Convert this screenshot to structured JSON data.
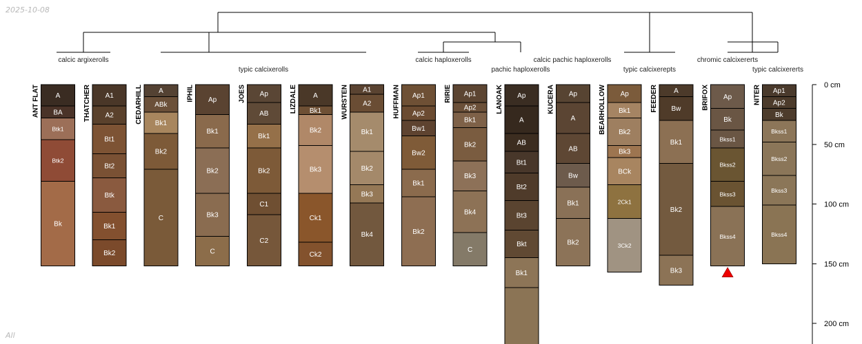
{
  "date_label": "2025-10-08",
  "footer_label": "All",
  "depth_axis": {
    "unit": "cm",
    "max": 220,
    "ticks": [
      {
        "depth": 0,
        "label": "0 cm"
      },
      {
        "depth": 50,
        "label": "50 cm"
      },
      {
        "depth": 100,
        "label": "100 cm"
      },
      {
        "depth": 150,
        "label": "150 cm"
      },
      {
        "depth": 200,
        "label": "200 cm"
      }
    ]
  },
  "groups": [
    {
      "label": "calcic argixerolls"
    },
    {
      "label": "typic calcixerolls"
    },
    {
      "label": "calcic haploxerolls"
    },
    {
      "label": "pachic haploxerolls"
    },
    {
      "label": "calcic pachic haploxerolls"
    },
    {
      "label": "typic calcixerepts"
    },
    {
      "label": "chromic calcixererts"
    },
    {
      "label": "typic calcixererts"
    }
  ],
  "marker": {
    "profile": "BRIFOX",
    "color": "#ee0000"
  },
  "profiles": [
    {
      "name": "ANT FLAT",
      "horizons": [
        {
          "name": "A",
          "top": 0,
          "bottom": 18,
          "color": "#3a2c22"
        },
        {
          "name": "BA",
          "top": 18,
          "bottom": 28,
          "color": "#4a3328"
        },
        {
          "name": "Btk1",
          "top": 28,
          "bottom": 46,
          "color": "#9c6f58"
        },
        {
          "name": "Btk2",
          "top": 46,
          "bottom": 81,
          "color": "#8f4b36"
        },
        {
          "name": "Bk",
          "top": 81,
          "bottom": 152,
          "color": "#a36b48"
        }
      ]
    },
    {
      "name": "THATCHER",
      "horizons": [
        {
          "name": "A1",
          "top": 0,
          "bottom": 18,
          "color": "#4a3728"
        },
        {
          "name": "A2",
          "top": 18,
          "bottom": 33,
          "color": "#5a412c"
        },
        {
          "name": "Bt1",
          "top": 33,
          "bottom": 58,
          "color": "#7d5334"
        },
        {
          "name": "Bt2",
          "top": 58,
          "bottom": 78,
          "color": "#7a5134"
        },
        {
          "name": "Btk",
          "top": 78,
          "bottom": 107,
          "color": "#8a5a3f"
        },
        {
          "name": "Bk1",
          "top": 107,
          "bottom": 130,
          "color": "#83502f"
        },
        {
          "name": "Bk2",
          "top": 130,
          "bottom": 152,
          "color": "#7b4a2b"
        }
      ]
    },
    {
      "name": "CEDARHILL",
      "horizons": [
        {
          "name": "A",
          "top": 0,
          "bottom": 10,
          "color": "#544233"
        },
        {
          "name": "ABk",
          "top": 10,
          "bottom": 23,
          "color": "#6b5039"
        },
        {
          "name": "Bk1",
          "top": 23,
          "bottom": 41,
          "color": "#a8865e"
        },
        {
          "name": "Bk2",
          "top": 41,
          "bottom": 71,
          "color": "#7d5a38"
        },
        {
          "name": "C",
          "top": 71,
          "bottom": 152,
          "color": "#7a5a39"
        }
      ]
    },
    {
      "name": "IPHIL",
      "horizons": [
        {
          "name": "Ap",
          "top": 0,
          "bottom": 25,
          "color": "#5a4331"
        },
        {
          "name": "Bk1",
          "top": 25,
          "bottom": 53,
          "color": "#8a6a4c"
        },
        {
          "name": "Bk2",
          "top": 53,
          "bottom": 91,
          "color": "#8b6e55"
        },
        {
          "name": "Bk3",
          "top": 91,
          "bottom": 127,
          "color": "#8a6c50"
        },
        {
          "name": "C",
          "top": 127,
          "bottom": 152,
          "color": "#8c6d4a"
        }
      ]
    },
    {
      "name": "JOES",
      "horizons": [
        {
          "name": "Ap",
          "top": 0,
          "bottom": 15,
          "color": "#5a4635"
        },
        {
          "name": "AB",
          "top": 15,
          "bottom": 33,
          "color": "#5f4a37"
        },
        {
          "name": "Bk1",
          "top": 33,
          "bottom": 53,
          "color": "#957049"
        },
        {
          "name": "Bk2",
          "top": 53,
          "bottom": 91,
          "color": "#7d5a38"
        },
        {
          "name": "C1",
          "top": 91,
          "bottom": 109,
          "color": "#6f4f32"
        },
        {
          "name": "C2",
          "top": 109,
          "bottom": 152,
          "color": "#76573a"
        }
      ]
    },
    {
      "name": "LIZDALE",
      "horizons": [
        {
          "name": "A",
          "top": 0,
          "bottom": 18,
          "color": "#4a3828"
        },
        {
          "name": "Bk1",
          "top": 18,
          "bottom": 25,
          "color": "#6e5035"
        },
        {
          "name": "Bk2",
          "top": 25,
          "bottom": 51,
          "color": "#b08868"
        },
        {
          "name": "Bk3",
          "top": 51,
          "bottom": 91,
          "color": "#b58e6e"
        },
        {
          "name": "Ck1",
          "top": 91,
          "bottom": 132,
          "color": "#8a562b"
        },
        {
          "name": "Ck2",
          "top": 132,
          "bottom": 152,
          "color": "#83522d"
        }
      ]
    },
    {
      "name": "WURSTEN",
      "horizons": [
        {
          "name": "A1",
          "top": 0,
          "bottom": 8,
          "color": "#5a4331"
        },
        {
          "name": "A2",
          "top": 8,
          "bottom": 23,
          "color": "#6a4d34"
        },
        {
          "name": "Bk1",
          "top": 23,
          "bottom": 56,
          "color": "#a58b6c"
        },
        {
          "name": "Bk2",
          "top": 56,
          "bottom": 84,
          "color": "#a4896a"
        },
        {
          "name": "Bk3",
          "top": 84,
          "bottom": 99,
          "color": "#957856"
        },
        {
          "name": "Bk4",
          "top": 99,
          "bottom": 152,
          "color": "#72583e"
        }
      ]
    },
    {
      "name": "HUFFMAN",
      "horizons": [
        {
          "name": "Ap1",
          "top": 0,
          "bottom": 18,
          "color": "#6e5035"
        },
        {
          "name": "Ap2",
          "top": 18,
          "bottom": 30,
          "color": "#6b4b31"
        },
        {
          "name": "Bw1",
          "top": 30,
          "bottom": 43,
          "color": "#5e4330"
        },
        {
          "name": "Bw2",
          "top": 43,
          "bottom": 71,
          "color": "#7f5b38"
        },
        {
          "name": "Bk1",
          "top": 71,
          "bottom": 94,
          "color": "#8b6b4d"
        },
        {
          "name": "Bk2",
          "top": 94,
          "bottom": 152,
          "color": "#8e6e52"
        }
      ]
    },
    {
      "name": "RIRIE",
      "horizons": [
        {
          "name": "Ap1",
          "top": 0,
          "bottom": 15,
          "color": "#5c4532"
        },
        {
          "name": "Ap2",
          "top": 15,
          "bottom": 23,
          "color": "#6b5039"
        },
        {
          "name": "Bk1",
          "top": 23,
          "bottom": 36,
          "color": "#7e6148"
        },
        {
          "name": "Bk2",
          "top": 36,
          "bottom": 64,
          "color": "#7a5c40"
        },
        {
          "name": "Bk3",
          "top": 64,
          "bottom": 89,
          "color": "#8d7158"
        },
        {
          "name": "Bk4",
          "top": 89,
          "bottom": 124,
          "color": "#8d7256"
        },
        {
          "name": "C",
          "top": 124,
          "bottom": 152,
          "color": "#847a68"
        }
      ]
    },
    {
      "name": "LANOAK",
      "horizons": [
        {
          "name": "Ap",
          "top": 0,
          "bottom": 18,
          "color": "#3a2d22"
        },
        {
          "name": "A",
          "top": 18,
          "bottom": 41,
          "color": "#36291e"
        },
        {
          "name": "AB",
          "top": 41,
          "bottom": 56,
          "color": "#3c2d20"
        },
        {
          "name": "Bt1",
          "top": 56,
          "bottom": 74,
          "color": "#48372a"
        },
        {
          "name": "Bt2",
          "top": 74,
          "bottom": 97,
          "color": "#4f3b2a"
        },
        {
          "name": "Bt3",
          "top": 97,
          "bottom": 122,
          "color": "#5a4430"
        },
        {
          "name": "Bkt",
          "top": 122,
          "bottom": 145,
          "color": "#604933"
        },
        {
          "name": "Bk1",
          "top": 145,
          "bottom": 170,
          "color": "#8d7557"
        },
        {
          "name": "",
          "top": 170,
          "bottom": 230,
          "color": "#8b7455"
        }
      ]
    },
    {
      "name": "KUCERA",
      "horizons": [
        {
          "name": "Ap",
          "top": 0,
          "bottom": 15,
          "color": "#574432"
        },
        {
          "name": "A",
          "top": 15,
          "bottom": 41,
          "color": "#5b4533"
        },
        {
          "name": "AB",
          "top": 41,
          "bottom": 66,
          "color": "#5e4734"
        },
        {
          "name": "Bw",
          "top": 66,
          "bottom": 86,
          "color": "#6d5b4c"
        },
        {
          "name": "Bk1",
          "top": 86,
          "bottom": 112,
          "color": "#8a7157"
        },
        {
          "name": "Bk2",
          "top": 112,
          "bottom": 152,
          "color": "#8c7358"
        }
      ]
    },
    {
      "name": "BEARHOLLOW",
      "horizons": [
        {
          "name": "Ap",
          "top": 0,
          "bottom": 15,
          "color": "#7b5b3b"
        },
        {
          "name": "Bk1",
          "top": 15,
          "bottom": 28,
          "color": "#a58463"
        },
        {
          "name": "Bk2",
          "top": 28,
          "bottom": 51,
          "color": "#9e7f60"
        },
        {
          "name": "Bk3",
          "top": 51,
          "bottom": 61,
          "color": "#9d7550"
        },
        {
          "name": "BCk",
          "top": 61,
          "bottom": 84,
          "color": "#a88560"
        },
        {
          "name": "2Ck1",
          "top": 84,
          "bottom": 112,
          "color": "#8e7240"
        },
        {
          "name": "3Ck2",
          "top": 112,
          "bottom": 157,
          "color": "#a09382"
        }
      ]
    },
    {
      "name": "FEEDER",
      "horizons": [
        {
          "name": "A",
          "top": 0,
          "bottom": 10,
          "color": "#4c3a2a"
        },
        {
          "name": "Bw",
          "top": 10,
          "bottom": 30,
          "color": "#4f3b29"
        },
        {
          "name": "Bk1",
          "top": 30,
          "bottom": 66,
          "color": "#8c7053"
        },
        {
          "name": "Bk2",
          "top": 66,
          "bottom": 143,
          "color": "#735a3f"
        },
        {
          "name": "Bk3",
          "top": 143,
          "bottom": 168,
          "color": "#8c7356"
        }
      ]
    },
    {
      "name": "BRIFOX",
      "horizons": [
        {
          "name": "Ap",
          "top": 0,
          "bottom": 20,
          "color": "#6d5a4a"
        },
        {
          "name": "Bk",
          "top": 20,
          "bottom": 38,
          "color": "#6a5644"
        },
        {
          "name": "Bkss1",
          "top": 38,
          "bottom": 53,
          "color": "#6a5644"
        },
        {
          "name": "Bkss2",
          "top": 53,
          "bottom": 81,
          "color": "#6a5532"
        },
        {
          "name": "Bkss3",
          "top": 81,
          "bottom": 102,
          "color": "#6a5332"
        },
        {
          "name": "Bkss4",
          "top": 102,
          "bottom": 152,
          "color": "#8a7256"
        }
      ]
    },
    {
      "name": "NITER",
      "horizons": [
        {
          "name": "Ap1",
          "top": 0,
          "bottom": 10,
          "color": "#4a3a2c"
        },
        {
          "name": "Ap2",
          "top": 10,
          "bottom": 20,
          "color": "#4c3b2b"
        },
        {
          "name": "Bk",
          "top": 20,
          "bottom": 30,
          "color": "#4d3c2c"
        },
        {
          "name": "Bkss1",
          "top": 30,
          "bottom": 48,
          "color": "#8c7659"
        },
        {
          "name": "Bkss2",
          "top": 48,
          "bottom": 76,
          "color": "#8b7659"
        },
        {
          "name": "Bkss3",
          "top": 76,
          "bottom": 101,
          "color": "#8b7658"
        },
        {
          "name": "Bkss4",
          "top": 101,
          "bottom": 150,
          "color": "#8a7454"
        }
      ]
    }
  ]
}
